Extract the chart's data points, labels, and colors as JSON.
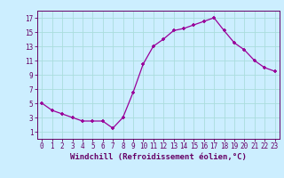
{
  "x": [
    0,
    1,
    2,
    3,
    4,
    5,
    6,
    7,
    8,
    9,
    10,
    11,
    12,
    13,
    14,
    15,
    16,
    17,
    18,
    19,
    20,
    21,
    22,
    23
  ],
  "y": [
    5,
    4,
    3.5,
    3,
    2.5,
    2.5,
    2.5,
    1.5,
    3,
    6.5,
    10.5,
    13,
    14,
    15.2,
    15.5,
    16,
    16.5,
    17,
    15.2,
    13.5,
    12.5,
    11,
    10,
    9.5
  ],
  "line_color": "#990099",
  "marker": "P",
  "bg_color": "#cceeff",
  "grid_color": "#aadddd",
  "xlabel": "Windchill (Refroidissement éolien,°C)",
  "xlim": [
    -0.5,
    23.5
  ],
  "ylim": [
    0,
    18
  ],
  "yticks": [
    1,
    3,
    5,
    7,
    9,
    11,
    13,
    15,
    17
  ],
  "xticks": [
    0,
    1,
    2,
    3,
    4,
    5,
    6,
    7,
    8,
    9,
    10,
    11,
    12,
    13,
    14,
    15,
    16,
    17,
    18,
    19,
    20,
    21,
    22,
    23
  ],
  "font_color": "#660066",
  "tick_fontsize": 5.5,
  "xlabel_fontsize": 6.5
}
